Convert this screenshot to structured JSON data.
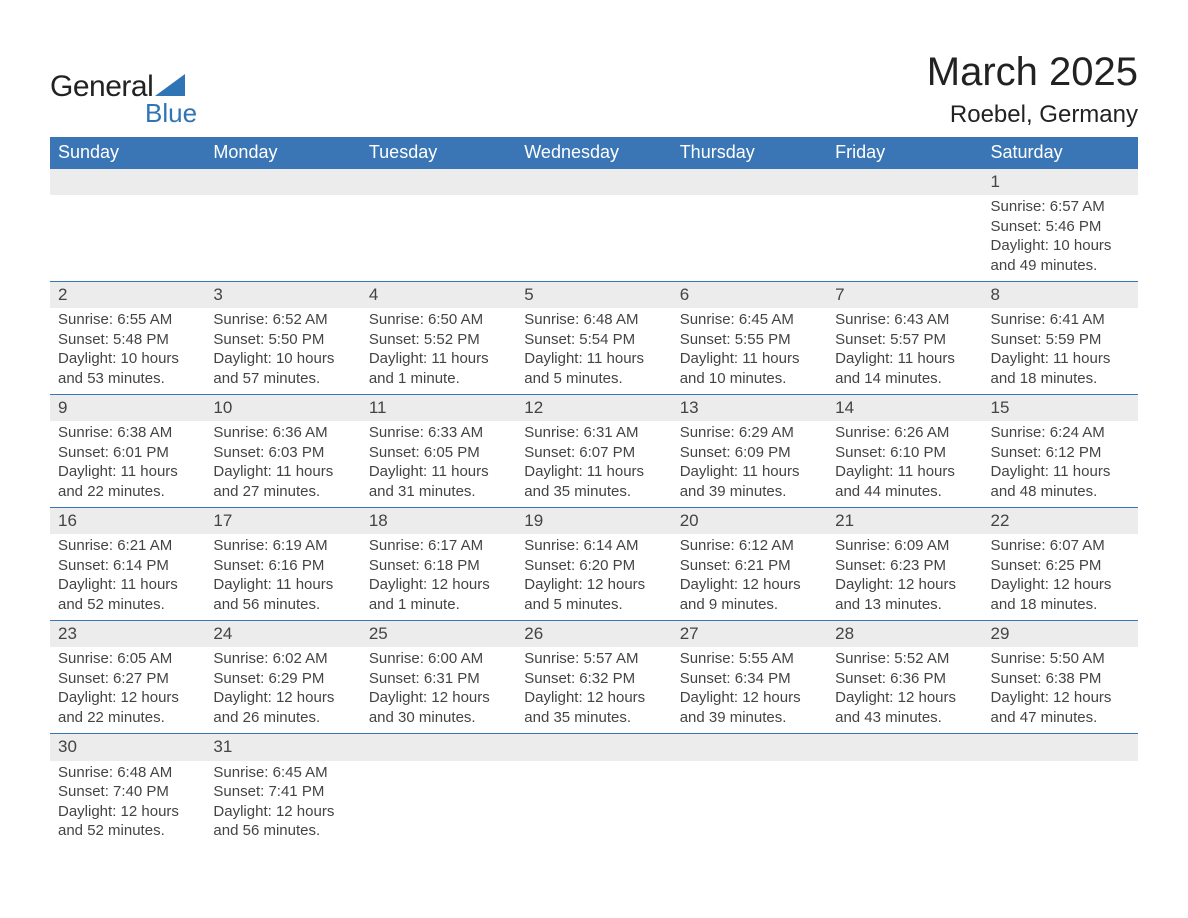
{
  "logo": {
    "general": "General",
    "blue": "Blue"
  },
  "title": "March 2025",
  "location": "Roebel, Germany",
  "colors": {
    "header_bg": "#3a76b5",
    "header_text": "#ffffff",
    "daynum_bg": "#ececec",
    "row_border": "#3a76b5",
    "body_text": "#444444",
    "logo_blue": "#2f75b5"
  },
  "fonts": {
    "title_size": 40,
    "location_size": 24,
    "header_size": 18,
    "daynum_size": 17,
    "body_size": 15
  },
  "weekdays": [
    "Sunday",
    "Monday",
    "Tuesday",
    "Wednesday",
    "Thursday",
    "Friday",
    "Saturday"
  ],
  "weeks": [
    [
      null,
      null,
      null,
      null,
      null,
      null,
      {
        "day": "1",
        "sunrise": "Sunrise: 6:57 AM",
        "sunset": "Sunset: 5:46 PM",
        "dl1": "Daylight: 10 hours",
        "dl2": "and 49 minutes."
      }
    ],
    [
      {
        "day": "2",
        "sunrise": "Sunrise: 6:55 AM",
        "sunset": "Sunset: 5:48 PM",
        "dl1": "Daylight: 10 hours",
        "dl2": "and 53 minutes."
      },
      {
        "day": "3",
        "sunrise": "Sunrise: 6:52 AM",
        "sunset": "Sunset: 5:50 PM",
        "dl1": "Daylight: 10 hours",
        "dl2": "and 57 minutes."
      },
      {
        "day": "4",
        "sunrise": "Sunrise: 6:50 AM",
        "sunset": "Sunset: 5:52 PM",
        "dl1": "Daylight: 11 hours",
        "dl2": "and 1 minute."
      },
      {
        "day": "5",
        "sunrise": "Sunrise: 6:48 AM",
        "sunset": "Sunset: 5:54 PM",
        "dl1": "Daylight: 11 hours",
        "dl2": "and 5 minutes."
      },
      {
        "day": "6",
        "sunrise": "Sunrise: 6:45 AM",
        "sunset": "Sunset: 5:55 PM",
        "dl1": "Daylight: 11 hours",
        "dl2": "and 10 minutes."
      },
      {
        "day": "7",
        "sunrise": "Sunrise: 6:43 AM",
        "sunset": "Sunset: 5:57 PM",
        "dl1": "Daylight: 11 hours",
        "dl2": "and 14 minutes."
      },
      {
        "day": "8",
        "sunrise": "Sunrise: 6:41 AM",
        "sunset": "Sunset: 5:59 PM",
        "dl1": "Daylight: 11 hours",
        "dl2": "and 18 minutes."
      }
    ],
    [
      {
        "day": "9",
        "sunrise": "Sunrise: 6:38 AM",
        "sunset": "Sunset: 6:01 PM",
        "dl1": "Daylight: 11 hours",
        "dl2": "and 22 minutes."
      },
      {
        "day": "10",
        "sunrise": "Sunrise: 6:36 AM",
        "sunset": "Sunset: 6:03 PM",
        "dl1": "Daylight: 11 hours",
        "dl2": "and 27 minutes."
      },
      {
        "day": "11",
        "sunrise": "Sunrise: 6:33 AM",
        "sunset": "Sunset: 6:05 PM",
        "dl1": "Daylight: 11 hours",
        "dl2": "and 31 minutes."
      },
      {
        "day": "12",
        "sunrise": "Sunrise: 6:31 AM",
        "sunset": "Sunset: 6:07 PM",
        "dl1": "Daylight: 11 hours",
        "dl2": "and 35 minutes."
      },
      {
        "day": "13",
        "sunrise": "Sunrise: 6:29 AM",
        "sunset": "Sunset: 6:09 PM",
        "dl1": "Daylight: 11 hours",
        "dl2": "and 39 minutes."
      },
      {
        "day": "14",
        "sunrise": "Sunrise: 6:26 AM",
        "sunset": "Sunset: 6:10 PM",
        "dl1": "Daylight: 11 hours",
        "dl2": "and 44 minutes."
      },
      {
        "day": "15",
        "sunrise": "Sunrise: 6:24 AM",
        "sunset": "Sunset: 6:12 PM",
        "dl1": "Daylight: 11 hours",
        "dl2": "and 48 minutes."
      }
    ],
    [
      {
        "day": "16",
        "sunrise": "Sunrise: 6:21 AM",
        "sunset": "Sunset: 6:14 PM",
        "dl1": "Daylight: 11 hours",
        "dl2": "and 52 minutes."
      },
      {
        "day": "17",
        "sunrise": "Sunrise: 6:19 AM",
        "sunset": "Sunset: 6:16 PM",
        "dl1": "Daylight: 11 hours",
        "dl2": "and 56 minutes."
      },
      {
        "day": "18",
        "sunrise": "Sunrise: 6:17 AM",
        "sunset": "Sunset: 6:18 PM",
        "dl1": "Daylight: 12 hours",
        "dl2": "and 1 minute."
      },
      {
        "day": "19",
        "sunrise": "Sunrise: 6:14 AM",
        "sunset": "Sunset: 6:20 PM",
        "dl1": "Daylight: 12 hours",
        "dl2": "and 5 minutes."
      },
      {
        "day": "20",
        "sunrise": "Sunrise: 6:12 AM",
        "sunset": "Sunset: 6:21 PM",
        "dl1": "Daylight: 12 hours",
        "dl2": "and 9 minutes."
      },
      {
        "day": "21",
        "sunrise": "Sunrise: 6:09 AM",
        "sunset": "Sunset: 6:23 PM",
        "dl1": "Daylight: 12 hours",
        "dl2": "and 13 minutes."
      },
      {
        "day": "22",
        "sunrise": "Sunrise: 6:07 AM",
        "sunset": "Sunset: 6:25 PM",
        "dl1": "Daylight: 12 hours",
        "dl2": "and 18 minutes."
      }
    ],
    [
      {
        "day": "23",
        "sunrise": "Sunrise: 6:05 AM",
        "sunset": "Sunset: 6:27 PM",
        "dl1": "Daylight: 12 hours",
        "dl2": "and 22 minutes."
      },
      {
        "day": "24",
        "sunrise": "Sunrise: 6:02 AM",
        "sunset": "Sunset: 6:29 PM",
        "dl1": "Daylight: 12 hours",
        "dl2": "and 26 minutes."
      },
      {
        "day": "25",
        "sunrise": "Sunrise: 6:00 AM",
        "sunset": "Sunset: 6:31 PM",
        "dl1": "Daylight: 12 hours",
        "dl2": "and 30 minutes."
      },
      {
        "day": "26",
        "sunrise": "Sunrise: 5:57 AM",
        "sunset": "Sunset: 6:32 PM",
        "dl1": "Daylight: 12 hours",
        "dl2": "and 35 minutes."
      },
      {
        "day": "27",
        "sunrise": "Sunrise: 5:55 AM",
        "sunset": "Sunset: 6:34 PM",
        "dl1": "Daylight: 12 hours",
        "dl2": "and 39 minutes."
      },
      {
        "day": "28",
        "sunrise": "Sunrise: 5:52 AM",
        "sunset": "Sunset: 6:36 PM",
        "dl1": "Daylight: 12 hours",
        "dl2": "and 43 minutes."
      },
      {
        "day": "29",
        "sunrise": "Sunrise: 5:50 AM",
        "sunset": "Sunset: 6:38 PM",
        "dl1": "Daylight: 12 hours",
        "dl2": "and 47 minutes."
      }
    ],
    [
      {
        "day": "30",
        "sunrise": "Sunrise: 6:48 AM",
        "sunset": "Sunset: 7:40 PM",
        "dl1": "Daylight: 12 hours",
        "dl2": "and 52 minutes."
      },
      {
        "day": "31",
        "sunrise": "Sunrise: 6:45 AM",
        "sunset": "Sunset: 7:41 PM",
        "dl1": "Daylight: 12 hours",
        "dl2": "and 56 minutes."
      },
      null,
      null,
      null,
      null,
      null
    ]
  ]
}
